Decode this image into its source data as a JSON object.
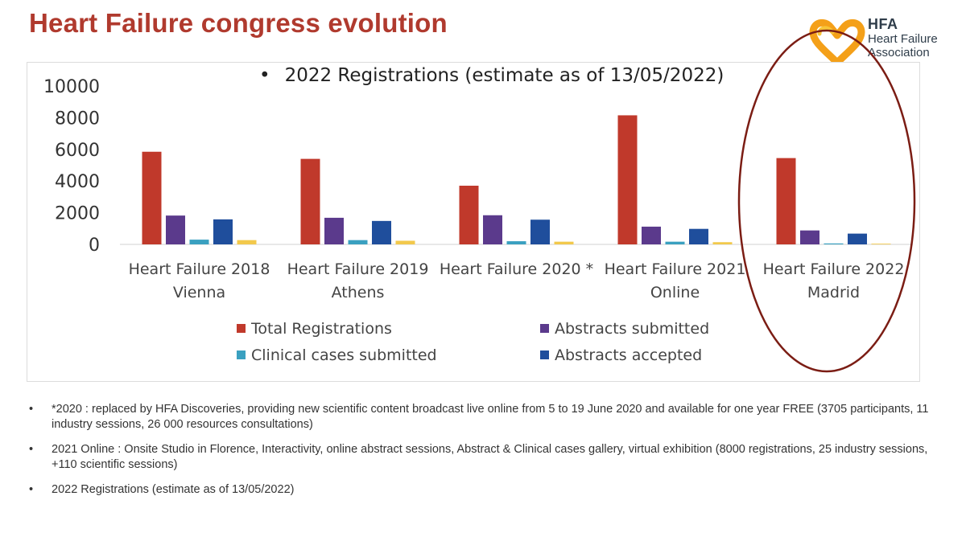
{
  "slide": {
    "title": "Heart Failure congress evolution"
  },
  "logo": {
    "abbr": "HFA",
    "line1": "Heart Failure",
    "line2": "Association",
    "colors": {
      "orange": "#f4a019",
      "yellow": "#f8c436",
      "red": "#c0392b"
    }
  },
  "chart_data": {
    "type": "bar",
    "title": "2022 Registrations (estimate as of 13/05/2022)",
    "title_bullet": "•",
    "categories": [
      [
        "Heart Failure 2018",
        "Vienna"
      ],
      [
        "Heart Failure 2019",
        "Athens"
      ],
      [
        "Heart Failure 2020 *"
      ],
      [
        "Heart Failure 2021",
        "Online"
      ],
      [
        "Heart Failure 2022",
        "Madrid"
      ]
    ],
    "series": [
      {
        "name": "Total Registrations",
        "color": "#c0392b",
        "values": [
          5850,
          5400,
          3705,
          8150,
          5450
        ]
      },
      {
        "name": "Abstracts submitted",
        "color": "#5b3a8c",
        "values": [
          1820,
          1680,
          1840,
          1120,
          880
        ]
      },
      {
        "name": "Clinical cases submitted",
        "color": "#3aa0c0",
        "values": [
          300,
          270,
          200,
          170,
          60
        ]
      },
      {
        "name": "Abstracts accepted",
        "color": "#1f4e9c",
        "values": [
          1580,
          1480,
          1560,
          980,
          680
        ]
      },
      {
        "name": "",
        "color": "#f2c94c",
        "values": [
          270,
          230,
          170,
          140,
          45
        ]
      }
    ],
    "ylim": [
      0,
      10000
    ],
    "yticks": [
      0,
      2000,
      4000,
      6000,
      8000,
      10000
    ],
    "legend": "bottom",
    "grid": false,
    "highlight_category": 4,
    "highlight_color": "#7b1d14"
  },
  "notes": [
    {
      "bullet": "•",
      "text": "*2020 : replaced by HFA Discoveries, providing new scientific content broadcast live online from 5 to 19 June 2020 and available for one year FREE (3705 participants, 11 industry sessions, 26 000 resources consultations)"
    },
    {
      "bullet": "•",
      "text": "2021 Online : Onsite Studio in Florence, Interactivity, online abstract sessions, Abstract & Clinical cases gallery, virtual exhibition (8000 registrations, 25 industry sessions, +110 scientific sessions)"
    },
    {
      "bullet": "•",
      "text": "2022 Registrations (estimate as of 13/05/2022)"
    }
  ]
}
